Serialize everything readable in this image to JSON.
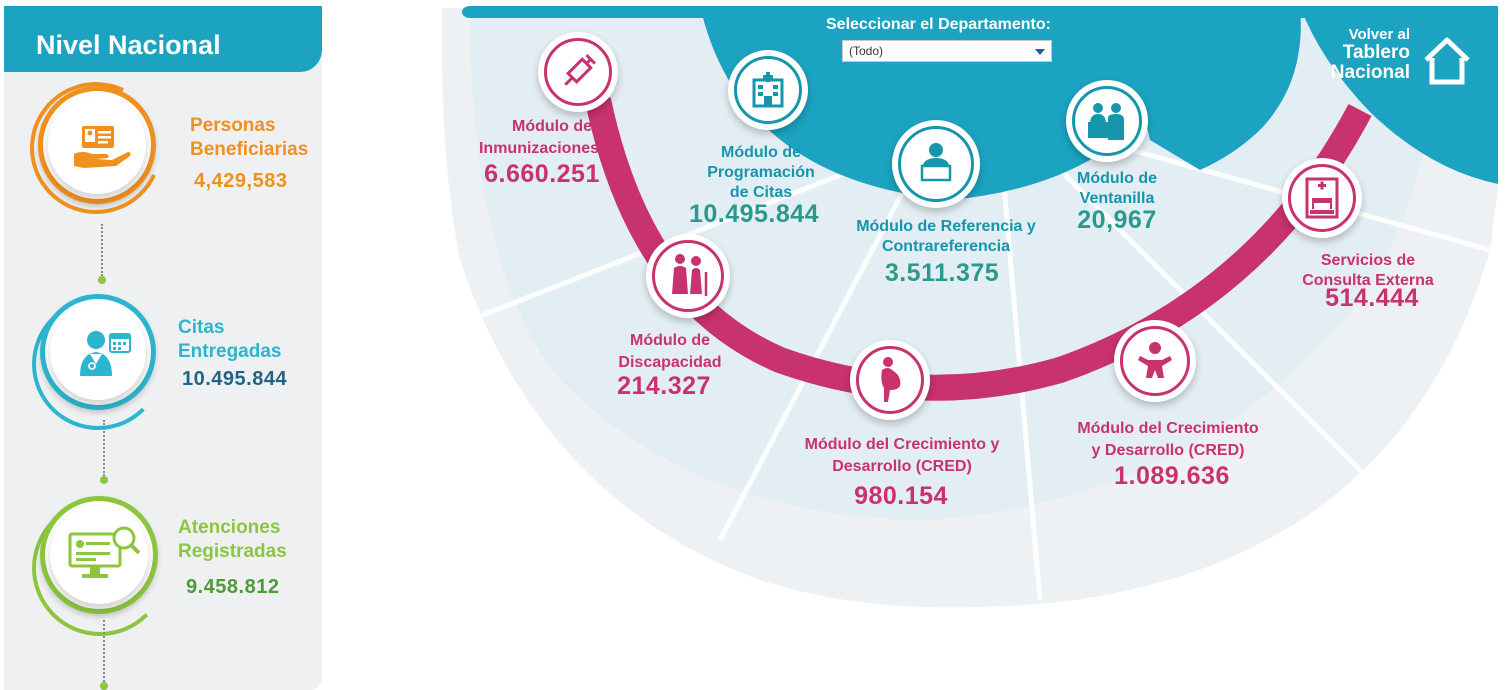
{
  "left": {
    "title": "Nivel Nacional",
    "stats": [
      {
        "label_line1": "Personas",
        "label_line2": "Beneficiarias",
        "value": "4,429,583",
        "icon": "hand-id-card-icon",
        "color": "#f0901e",
        "value_color": "#f0901e"
      },
      {
        "label_line1": "Citas",
        "label_line2": "Entregadas",
        "value": "10.495.844",
        "icon": "doctor-calendar-icon",
        "color": "#2bb5cf",
        "value_color": "#23638a"
      },
      {
        "label_line1": "Atenciones",
        "label_line2": "Registradas",
        "value": "9.458.812",
        "icon": "monitor-search-icon",
        "color": "#8cc63f",
        "value_color": "#4e9a3a"
      }
    ]
  },
  "department": {
    "label": "Seleccionar el Departamento:",
    "selected": "(Todo)"
  },
  "back": {
    "line1": "Volver al",
    "line2": "Tablero",
    "line3": "Nacional",
    "icon": "home-icon"
  },
  "modules": {
    "inmunizaciones": {
      "line1": "Módulo de",
      "line2": "Inmunizaciones",
      "value": "6.660.251",
      "icon": "syringe-icon"
    },
    "programacion": {
      "line1": "Módulo de",
      "line2": "Programación",
      "line3": "de Citas",
      "value": "10.495.844",
      "icon": "hospital-icon"
    },
    "referencia": {
      "line1": "Módulo de Referencia y",
      "line2": "Contrareferencia",
      "value": "3.511.375",
      "icon": "person-laptop-icon"
    },
    "ventanilla": {
      "line1": "Módulo de",
      "line2": "Ventanilla",
      "value": "20,967",
      "icon": "reception-desk-icon"
    },
    "consulta": {
      "line1": "Servicios de",
      "line2": "Consulta Externa",
      "value": "514.444",
      "icon": "hospital-bed-icon"
    },
    "discapacidad": {
      "line1": "Módulo de",
      "line2": "Discapacidad",
      "value": "214.327",
      "icon": "elderly-couple-icon"
    },
    "cred_gestante": {
      "line1": "Módulo del Crecimiento y",
      "line2": "Desarrollo (CRED)",
      "value": "980.154",
      "icon": "pregnant-woman-icon"
    },
    "cred_infante": {
      "line1": "Módulo del Crecimiento",
      "line2": "y Desarrollo (CRED)",
      "value": "1.089.636",
      "icon": "baby-icon"
    }
  },
  "colors": {
    "teal": "#1ba3c1",
    "pink": "#c8326e",
    "green": "#8cc63f",
    "orange": "#f0901e"
  }
}
